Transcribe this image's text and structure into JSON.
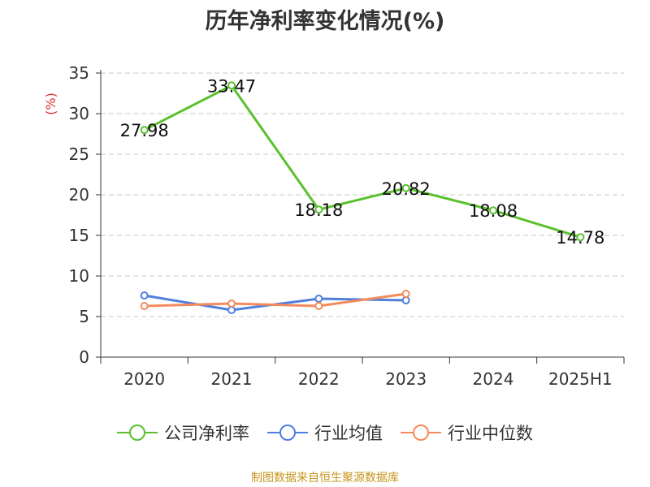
{
  "chart_data": {
    "type": "line",
    "title": "历年净利率变化情况(%)",
    "ylabel": "(%)",
    "categories": [
      "2020",
      "2021",
      "2022",
      "2023",
      "2024",
      "2025H1"
    ],
    "ylim": [
      0,
      35
    ],
    "yticks": [
      0,
      5,
      10,
      15,
      20,
      25,
      30,
      35
    ],
    "grid": true,
    "legend_position": "bottom",
    "series": [
      {
        "name": "公司净利率",
        "color": "#5ac12d",
        "values": [
          27.98,
          33.47,
          18.18,
          20.82,
          18.08,
          14.78
        ],
        "labels": [
          "27.98",
          "33.47",
          "18.18",
          "20.82",
          "18.08",
          "14.78"
        ]
      },
      {
        "name": "行业均值",
        "color": "#4f7fdf",
        "values": [
          7.6,
          5.8,
          7.2,
          7.0,
          null,
          null
        ]
      },
      {
        "name": "行业中位数",
        "color": "#f48b5c",
        "values": [
          6.3,
          6.6,
          6.3,
          7.8,
          null,
          null
        ]
      }
    ]
  },
  "source": "制图数据来自恒生聚源数据库"
}
